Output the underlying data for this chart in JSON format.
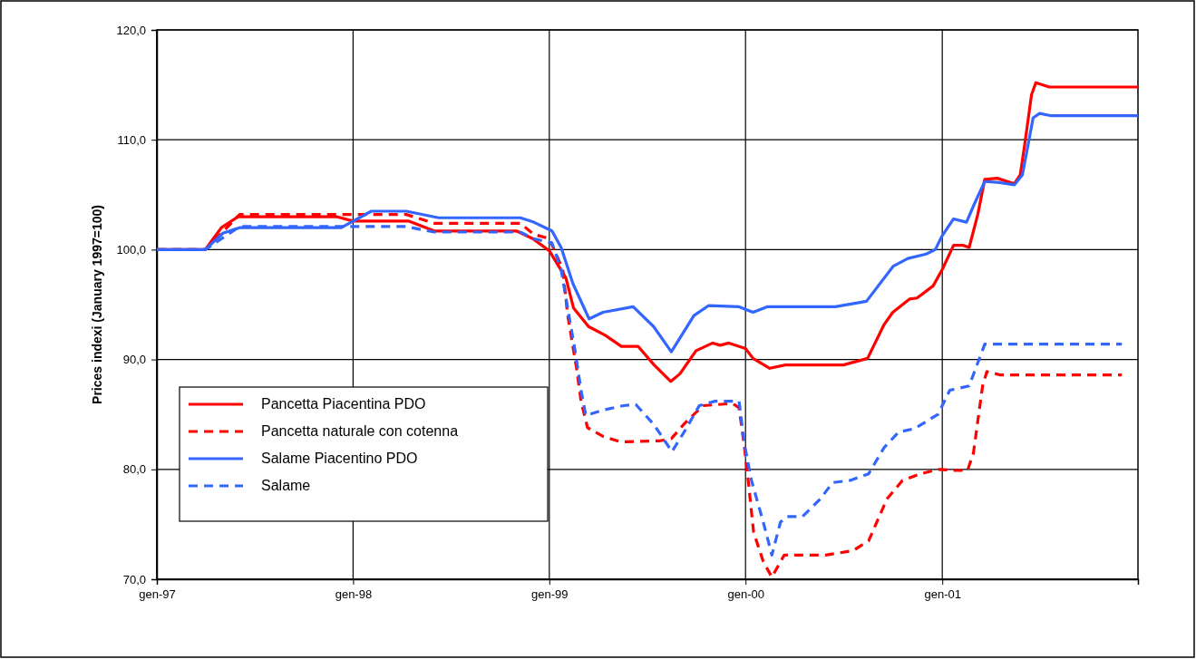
{
  "chart_data": {
    "type": "line",
    "ylabel": "Prices indexi (January 1997=100)",
    "xlim": [
      "1997-01-01",
      "2001-12-31"
    ],
    "xticks": [
      {
        "value": "1997-01-01",
        "label": "gen-97"
      },
      {
        "value": "1998-01-01",
        "label": "gen-98"
      },
      {
        "value": "1999-01-01",
        "label": "gen-99"
      },
      {
        "value": "2000-01-01",
        "label": "gen-00"
      },
      {
        "value": "2001-01-01",
        "label": "gen-01"
      }
    ],
    "ylim": [
      70,
      120
    ],
    "yticks": [
      {
        "value": 70,
        "label": "70,0"
      },
      {
        "value": 80,
        "label": "80,0"
      },
      {
        "value": 90,
        "label": "90,0"
      },
      {
        "value": 100,
        "label": "100,0"
      },
      {
        "value": 110,
        "label": "110,0"
      },
      {
        "value": 120,
        "label": "120,0"
      }
    ],
    "grid": true,
    "legend": "bottom left",
    "marker": "none",
    "series": [
      {
        "name": "Pancetta Piacentina PDO",
        "color": "#ff0000",
        "line_style": "solid",
        "x": [
          "1997-01-01",
          "1997-04-01",
          "1997-05-01",
          "1997-06-01",
          "1997-12-01",
          "1998-01-01",
          "1998-04-15",
          "1998-06-01",
          "1998-11-01",
          "1998-12-01",
          "1999-01-01",
          "1999-02-01",
          "1999-02-15",
          "1999-03-15",
          "1999-04-15",
          "1999-05-15",
          "1999-06-15",
          "1999-07-15",
          "1999-08-15",
          "1999-09-01",
          "1999-10-01",
          "1999-11-01",
          "1999-11-15",
          "1999-12-01",
          "2000-01-01",
          "2000-01-15",
          "2000-02-15",
          "2000-03-15",
          "2000-07-01",
          "2000-08-15",
          "2000-09-15",
          "2000-10-01",
          "2000-11-01",
          "2000-11-15",
          "2000-12-15",
          "2001-01-01",
          "2001-01-22",
          "2001-02-08",
          "2001-02-20",
          "2001-03-08",
          "2001-03-21",
          "2001-04-13",
          "2001-05-15",
          "2001-05-26",
          "2001-06-04",
          "2001-06-16",
          "2001-06-24",
          "2001-07-19",
          "2001-12-31"
        ],
        "values": [
          100,
          100,
          102.0,
          103.0,
          103.0,
          102.6,
          102.6,
          101.7,
          101.7,
          101.0,
          99.9,
          97.4,
          94.7,
          93.0,
          92.2,
          91.2,
          91.2,
          89.5,
          88.0,
          88.7,
          90.8,
          91.5,
          91.3,
          91.5,
          91.0,
          90.1,
          89.2,
          89.5,
          89.5,
          90.1,
          93.2,
          94.3,
          95.5,
          95.6,
          96.7,
          98.2,
          100.4,
          100.4,
          100.2,
          103.2,
          106.4,
          106.5,
          106.0,
          106.8,
          109.8,
          114.1,
          115.2,
          114.8,
          114.8
        ]
      },
      {
        "name": "Pancetta naturale con cotenna",
        "color": "#ff0000",
        "line_style": "dashed",
        "x": [
          "1997-01-01",
          "1997-04-01",
          "1997-06-04",
          "1998-04-10",
          "1998-06-01",
          "1998-11-08",
          "1998-12-03",
          "1999-01-01",
          "1999-01-26",
          "1999-02-04",
          "1999-02-21",
          "1999-03-01",
          "1999-03-13",
          "1999-04-11",
          "1999-05-14",
          "1999-07-26",
          "1999-08-16",
          "1999-09-10",
          "1999-10-14",
          "1999-12-08",
          "1999-12-20",
          "1999-12-30",
          "2000-01-06",
          "2000-01-16",
          "2000-02-03",
          "2000-02-19",
          "2000-03-13",
          "2000-05-29",
          "2000-07-19",
          "2000-08-17",
          "2000-09-20",
          "2000-10-19",
          "2000-11-22",
          "2000-12-25",
          "2001-01-27",
          "2001-02-17",
          "2001-02-28",
          "2001-03-17",
          "2001-03-25",
          "2001-04-18",
          "2001-12-01"
        ],
        "values": [
          100,
          100,
          103.2,
          103.2,
          102.4,
          102.4,
          101.4,
          101.0,
          98.2,
          94.1,
          89.1,
          86.2,
          83.8,
          83.0,
          82.5,
          82.6,
          82.8,
          84.2,
          85.8,
          86.0,
          85.6,
          82.0,
          79.0,
          74.3,
          71.6,
          70.2,
          72.2,
          72.2,
          72.6,
          73.5,
          77.3,
          79.0,
          79.6,
          80.0,
          79.9,
          79.9,
          81.5,
          87.6,
          88.9,
          88.6,
          88.6
        ]
      },
      {
        "name": "Salame Piacentino PDO",
        "color": "#3366ff",
        "line_style": "solid",
        "x": [
          "1997-01-01",
          "1997-04-01",
          "1997-05-04",
          "1997-06-04",
          "1997-12-10",
          "1998-02-04",
          "1998-04-10",
          "1998-06-09",
          "1998-11-08",
          "1998-12-03",
          "1999-01-06",
          "1999-01-23",
          "1999-02-14",
          "1999-03-16",
          "1999-04-11",
          "1999-06-06",
          "1999-07-14",
          "1999-08-16",
          "1999-09-27",
          "1999-10-24",
          "1999-12-20",
          "2000-01-15",
          "2000-02-10",
          "2000-06-16",
          "2000-08-13",
          "2000-10-02",
          "2000-10-29",
          "2000-12-02",
          "2000-12-19",
          "2000-12-31",
          "2001-01-22",
          "2001-02-15",
          "2001-03-02",
          "2001-03-21",
          "2001-04-18",
          "2001-05-15",
          "2001-05-30",
          "2001-06-19",
          "2001-07-01",
          "2001-07-21",
          "2001-12-31"
        ],
        "values": [
          100,
          100,
          101.5,
          102.0,
          102.0,
          103.5,
          103.5,
          102.9,
          102.9,
          102.5,
          101.7,
          100.2,
          96.9,
          93.7,
          94.3,
          94.8,
          93.0,
          90.7,
          94.0,
          94.9,
          94.8,
          94.3,
          94.8,
          94.8,
          95.3,
          98.5,
          99.2,
          99.6,
          100.0,
          101.2,
          102.8,
          102.5,
          104.2,
          106.2,
          106.1,
          105.9,
          106.8,
          112.0,
          112.4,
          112.2,
          112.2
        ]
      },
      {
        "name": "Salame",
        "color": "#3366ff",
        "line_style": "dashed",
        "x": [
          "1997-01-01",
          "1997-04-01",
          "1997-06-04",
          "1998-04-10",
          "1998-06-01",
          "1998-11-08",
          "1998-12-03",
          "1999-01-06",
          "1999-01-23",
          "1999-02-04",
          "1999-02-18",
          "1999-03-01",
          "1999-03-10",
          "1999-04-11",
          "1999-05-19",
          "1999-06-11",
          "1999-07-14",
          "1999-07-31",
          "1999-08-17",
          "1999-09-10",
          "1999-10-07",
          "1999-11-05",
          "1999-12-20",
          "1999-12-30",
          "2000-01-12",
          "2000-02-03",
          "2000-02-19",
          "2000-03-06",
          "2000-03-18",
          "2000-04-16",
          "2000-05-19",
          "2000-06-11",
          "2000-07-14",
          "2000-08-17",
          "2000-09-15",
          "2000-10-12",
          "2000-11-10",
          "2000-12-24",
          "2001-01-15",
          "2001-02-20",
          "2001-03-05",
          "2001-03-21",
          "2001-12-01"
        ],
        "values": [
          100,
          100,
          102.1,
          102.1,
          101.6,
          101.6,
          101.0,
          100.6,
          98.2,
          94.7,
          90.8,
          87.2,
          84.9,
          85.4,
          85.8,
          85.9,
          84.1,
          82.9,
          81.6,
          83.5,
          85.8,
          86.2,
          86.2,
          82.3,
          79.0,
          75.2,
          72.2,
          75.2,
          75.7,
          75.7,
          77.3,
          78.8,
          79.0,
          79.6,
          82.0,
          83.4,
          83.7,
          85.0,
          87.2,
          87.6,
          89.3,
          91.4,
          91.4
        ]
      }
    ]
  }
}
